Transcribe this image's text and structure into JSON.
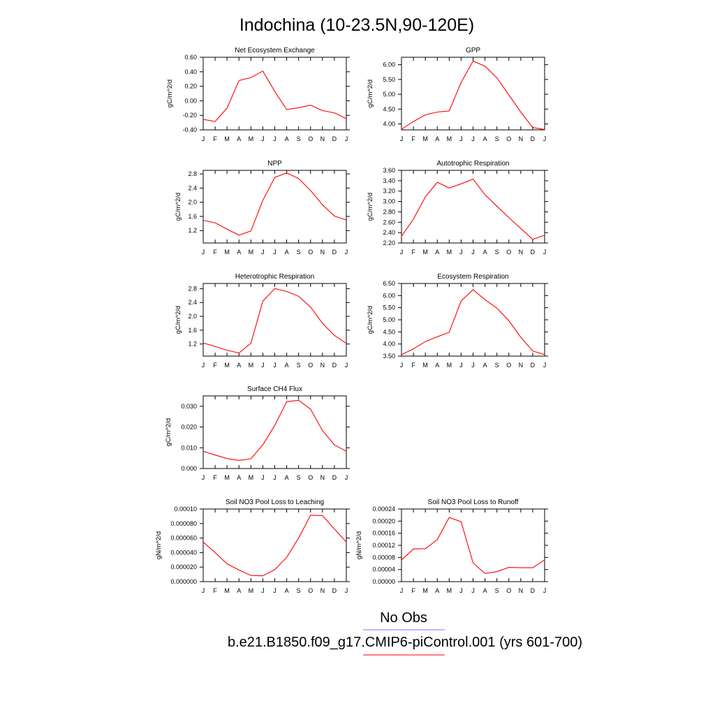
{
  "figure_title": "Indochina (10-23.5N,90-120E)",
  "legend": {
    "obs_label": "No Obs",
    "obs_color": "#7777ee",
    "model_label": "b.e21.B1850.f09_g17.CMIP6-piControl.001 (yrs 601-700)",
    "model_color": "#ff0000"
  },
  "chart_data": [
    {
      "type": "line",
      "title": "Net Ecosystem Exchange",
      "ylabel": "gC/m^2/d",
      "categories": [
        "J",
        "F",
        "M",
        "A",
        "M",
        "J",
        "J",
        "A",
        "S",
        "O",
        "N",
        "D",
        "J"
      ],
      "ylim": [
        -0.4,
        0.6
      ],
      "yticks": [
        -0.4,
        -0.2,
        0.0,
        0.2,
        0.4,
        0.6
      ],
      "ytick_labels": [
        "-0.40",
        "-0.20",
        "0.00",
        "0.20",
        "0.40",
        "0.60"
      ],
      "values": [
        -0.255,
        -0.285,
        -0.1,
        0.28,
        0.32,
        0.41,
        0.13,
        -0.12,
        -0.095,
        -0.06,
        -0.135,
        -0.165,
        -0.245
      ],
      "color": "#ff0000"
    },
    {
      "type": "line",
      "title": "GPP",
      "ylabel": "gC/m^2/d",
      "categories": [
        "J",
        "F",
        "M",
        "A",
        "M",
        "J",
        "J",
        "A",
        "S",
        "O",
        "N",
        "D",
        "J"
      ],
      "ylim": [
        3.8,
        6.25
      ],
      "yticks": [
        4.0,
        4.5,
        5.0,
        5.5,
        6.0
      ],
      "ytick_labels": [
        "4.00",
        "4.50",
        "5.00",
        "5.50",
        "6.00"
      ],
      "values": [
        3.82,
        4.08,
        4.31,
        4.4,
        4.44,
        5.4,
        6.12,
        5.95,
        5.55,
        4.98,
        4.4,
        3.88,
        3.81
      ],
      "color": "#ff0000"
    },
    {
      "type": "line",
      "title": "NPP",
      "ylabel": "gC/m^2/d",
      "categories": [
        "J",
        "F",
        "M",
        "A",
        "M",
        "J",
        "J",
        "A",
        "S",
        "O",
        "N",
        "D",
        "J"
      ],
      "ylim": [
        0.85,
        2.9
      ],
      "yticks": [
        1.2,
        1.6,
        2.0,
        2.4,
        2.8
      ],
      "ytick_labels": [
        "1.2",
        "1.6",
        "2.0",
        "2.4",
        "2.8"
      ],
      "values": [
        1.49,
        1.42,
        1.24,
        1.07,
        1.19,
        2.05,
        2.7,
        2.83,
        2.67,
        2.33,
        1.93,
        1.61,
        1.5
      ],
      "color": "#ff0000"
    },
    {
      "type": "line",
      "title": "Autotrophic Respiration",
      "ylabel": "gC/m^2/d",
      "categories": [
        "J",
        "F",
        "M",
        "A",
        "M",
        "J",
        "J",
        "A",
        "S",
        "O",
        "N",
        "D",
        "J"
      ],
      "ylim": [
        2.2,
        3.6
      ],
      "yticks": [
        2.2,
        2.4,
        2.6,
        2.8,
        3.0,
        3.2,
        3.4,
        3.6
      ],
      "ytick_labels": [
        "2.20",
        "2.40",
        "2.60",
        "2.80",
        "3.00",
        "3.20",
        "3.40",
        "3.60"
      ],
      "values": [
        2.33,
        2.66,
        3.09,
        3.37,
        3.26,
        3.34,
        3.43,
        3.13,
        2.91,
        2.69,
        2.48,
        2.27,
        2.35
      ],
      "color": "#ff0000"
    },
    {
      "type": "line",
      "title": "Heterotrophic Respiration",
      "ylabel": "gC/m^2/d",
      "categories": [
        "J",
        "F",
        "M",
        "A",
        "M",
        "J",
        "J",
        "A",
        "S",
        "O",
        "N",
        "D",
        "J"
      ],
      "ylim": [
        0.85,
        2.95
      ],
      "yticks": [
        1.2,
        1.6,
        2.0,
        2.4,
        2.8
      ],
      "ytick_labels": [
        "1.2",
        "1.6",
        "2.0",
        "2.4",
        "2.8"
      ],
      "values": [
        1.23,
        1.13,
        1.02,
        0.94,
        1.22,
        2.44,
        2.8,
        2.72,
        2.58,
        2.27,
        1.8,
        1.45,
        1.22
      ],
      "color": "#ff0000"
    },
    {
      "type": "line",
      "title": "Ecosystem Respiration",
      "ylabel": "gC/m^2/d",
      "categories": [
        "J",
        "F",
        "M",
        "A",
        "M",
        "J",
        "J",
        "A",
        "S",
        "O",
        "N",
        "D",
        "J"
      ],
      "ylim": [
        3.5,
        6.5
      ],
      "yticks": [
        3.5,
        4.0,
        4.5,
        5.0,
        5.5,
        6.0,
        6.5
      ],
      "ytick_labels": [
        "3.50",
        "4.00",
        "4.50",
        "5.00",
        "5.50",
        "6.00",
        "6.50"
      ],
      "values": [
        3.56,
        3.8,
        4.1,
        4.3,
        4.48,
        5.78,
        6.24,
        5.83,
        5.48,
        4.96,
        4.28,
        3.71,
        3.56
      ],
      "color": "#ff0000"
    },
    {
      "type": "line",
      "title": "Surface CH4 Flux",
      "ylabel": "gC/m^2/d",
      "categories": [
        "J",
        "F",
        "M",
        "A",
        "M",
        "J",
        "J",
        "A",
        "S",
        "O",
        "N",
        "D",
        "J"
      ],
      "ylim": [
        0.0,
        0.035
      ],
      "yticks": [
        0.0,
        0.01,
        0.02,
        0.03
      ],
      "ytick_labels": [
        "0.000",
        "0.010",
        "0.020",
        "0.030"
      ],
      "values": [
        0.0083,
        0.0065,
        0.0048,
        0.0039,
        0.0047,
        0.0114,
        0.0208,
        0.0322,
        0.0329,
        0.0286,
        0.0183,
        0.0114,
        0.0083
      ],
      "color": "#ff0000"
    },
    {
      "type": "line",
      "title": "Soil NO3 Pool Loss to Leaching",
      "ylabel": "gN/m^2/d",
      "categories": [
        "J",
        "F",
        "M",
        "A",
        "M",
        "J",
        "J",
        "A",
        "S",
        "O",
        "N",
        "D",
        "J"
      ],
      "ylim": [
        0.0,
        0.0001
      ],
      "yticks": [
        0.0,
        2e-05,
        4e-05,
        6e-05,
        8e-05,
        0.0001
      ],
      "ytick_labels": [
        "0.000000",
        "0.000020",
        "0.000040",
        "0.000060",
        "0.000080",
        "0.00010"
      ],
      "values": [
        5.45e-05,
        4e-05,
        2.45e-05,
        1.6e-05,
        8.5e-06,
        8e-06,
        1.65e-05,
        3.35e-05,
        6e-05,
        9.15e-05,
        9.1e-05,
        7.25e-05,
        5.45e-05
      ],
      "color": "#ff0000"
    },
    {
      "type": "line",
      "title": "Soil NO3 Pool Loss to Runoff",
      "ylabel": "gN/m^2/d",
      "categories": [
        "J",
        "F",
        "M",
        "A",
        "M",
        "J",
        "J",
        "A",
        "S",
        "O",
        "N",
        "D",
        "J"
      ],
      "ylim": [
        0.0,
        0.00024
      ],
      "yticks": [
        0.0,
        4e-05,
        8e-05,
        0.00012,
        0.00016,
        0.0002,
        0.00024
      ],
      "ytick_labels": [
        "0.00000",
        "0.00004",
        "0.00008",
        "0.00012",
        "0.00016",
        "0.00020",
        "0.00024"
      ],
      "values": [
        7.1e-05,
        0.000108,
        0.000109,
        0.000139,
        0.000212,
        0.000198,
        6.2e-05,
        2.7e-05,
        3.3e-05,
        4.7e-05,
        4.6e-05,
        4.6e-05,
        7.2e-05
      ],
      "color": "#ff0000"
    }
  ]
}
